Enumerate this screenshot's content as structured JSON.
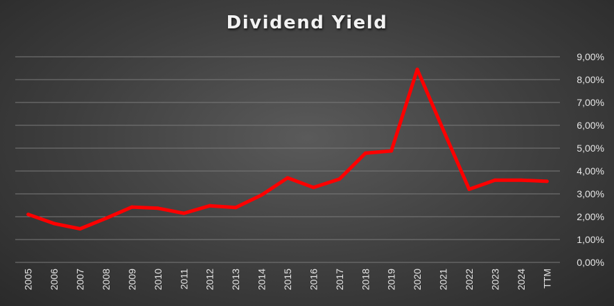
{
  "chart_data": {
    "type": "line",
    "title": "Dividend Yield",
    "categories": [
      "2005",
      "2006",
      "2007",
      "2008",
      "2009",
      "2010",
      "2011",
      "2012",
      "2013",
      "2014",
      "2015",
      "2016",
      "2017",
      "2018",
      "2019",
      "2020",
      "2021",
      "2022",
      "2023",
      "2024",
      "TTM"
    ],
    "series": [
      {
        "values": [
          2.1,
          1.7,
          1.47,
          1.93,
          2.42,
          2.37,
          2.15,
          2.48,
          2.4,
          2.95,
          3.7,
          3.28,
          3.65,
          4.78,
          4.88,
          8.45,
          5.8,
          3.2,
          3.6,
          3.6,
          3.55
        ],
        "color": "#ff0000"
      }
    ],
    "y_ticks": [
      "0,00%",
      "1,00%",
      "2,00%",
      "3,00%",
      "4,00%",
      "5,00%",
      "6,00%",
      "7,00%",
      "8,00%",
      "9,00%"
    ],
    "ylim": [
      0,
      9
    ],
    "y_axis_side": "right",
    "grid": true,
    "legend": "none"
  }
}
